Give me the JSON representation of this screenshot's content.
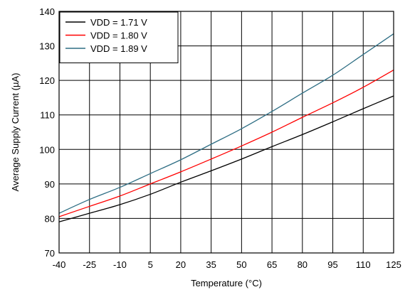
{
  "chart_data": {
    "type": "line",
    "title": "",
    "xlabel": "Temperature (°C)",
    "ylabel": "Average Supply Current (µA)",
    "xlim": [
      -40,
      125
    ],
    "ylim": [
      70,
      140
    ],
    "xticks": [
      -40,
      -25,
      -10,
      5,
      20,
      35,
      50,
      65,
      80,
      95,
      110,
      125
    ],
    "yticks": [
      70,
      80,
      90,
      100,
      110,
      120,
      130,
      140
    ],
    "grid": true,
    "legend_position": "top-left",
    "series": [
      {
        "name": "VDD = 1.71 V",
        "color": "#000000",
        "x": [
          -40,
          -25,
          -10,
          5,
          20,
          35,
          50,
          65,
          80,
          95,
          110,
          125
        ],
        "y": [
          79,
          81.5,
          84,
          87,
          90.5,
          93.8,
          97.2,
          100.8,
          104.3,
          108,
          111.8,
          115.5
        ]
      },
      {
        "name": "VDD = 1.80 V",
        "color": "#ff0000",
        "x": [
          -40,
          -25,
          -10,
          5,
          20,
          35,
          50,
          65,
          80,
          95,
          110,
          125
        ],
        "y": [
          80.5,
          83.5,
          86.5,
          90,
          93.5,
          97.2,
          101,
          105,
          109.3,
          113.5,
          118,
          123
        ]
      },
      {
        "name": "VDD = 1.89 V",
        "color": "#2e6e84",
        "x": [
          -40,
          -25,
          -10,
          5,
          20,
          35,
          50,
          65,
          80,
          95,
          110,
          125
        ],
        "y": [
          81.5,
          85.5,
          89,
          93,
          97,
          101.5,
          106,
          111,
          116.3,
          121.5,
          127.5,
          133.5
        ]
      }
    ]
  }
}
